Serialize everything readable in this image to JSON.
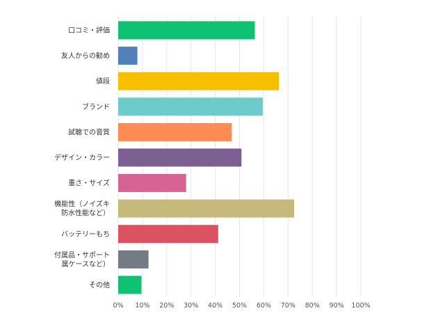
{
  "chart_data": {
    "type": "bar",
    "orientation": "horizontal",
    "categories": [
      [
        "口コミ・評価"
      ],
      [
        "友人からの勧め"
      ],
      [
        "値段"
      ],
      [
        "ブランド"
      ],
      [
        "試聴での音質"
      ],
      [
        "デザイン・カラー"
      ],
      [
        "重さ・サイズ"
      ],
      [
        "機能性（ノイズキ",
        "防水性能など）"
      ],
      [
        "バッテリーもち"
      ],
      [
        "付属品・サポート",
        "属ケースなど）"
      ],
      [
        "その他"
      ]
    ],
    "values": [
      56.3,
      7.9,
      66.2,
      59.6,
      46.7,
      50.8,
      28.0,
      72.5,
      41.2,
      12.5,
      9.6
    ],
    "colors": [
      "#10c174",
      "#5280b8",
      "#f6bf02",
      "#6dcbcc",
      "#ff8b54",
      "#7e5f91",
      "#d76392",
      "#c7b97c",
      "#dc5261",
      "#737b84",
      "#10c174"
    ],
    "xticks": [
      "0%",
      "10%",
      "20%",
      "30%",
      "40%",
      "50%",
      "60%",
      "70%",
      "80%",
      "90%",
      "100%"
    ],
    "xlim": [
      0,
      100
    ],
    "grid": true,
    "title": "",
    "xlabel": "",
    "ylabel": ""
  }
}
